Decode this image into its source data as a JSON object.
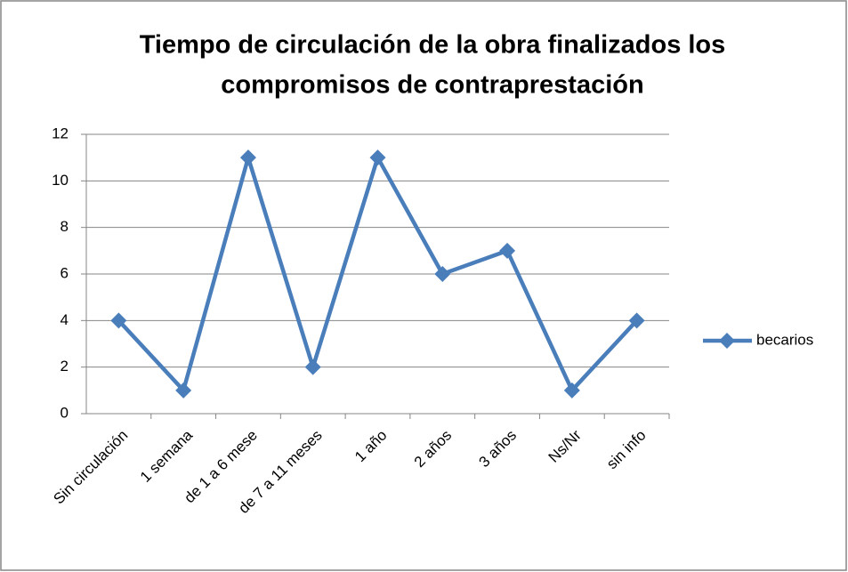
{
  "chart_data": {
    "type": "line",
    "title": [
      "Tiempo de circulación de la obra finalizados los",
      "compromisos de contraprestación"
    ],
    "categories": [
      "Sin circulación",
      "1 semana",
      "de 1 a 6 mese",
      "de 7 a 11 meses",
      "1 año",
      "2 años",
      "3 años",
      "Ns/Nr",
      "sin info"
    ],
    "series": [
      {
        "name": "becarios",
        "color": "#4a7ebb",
        "values": [
          4,
          1,
          11,
          2,
          11,
          6,
          7,
          1,
          4
        ]
      }
    ],
    "ylim": [
      0,
      12
    ],
    "yticks": [
      0,
      2,
      4,
      6,
      8,
      10,
      12
    ],
    "grid": true,
    "legend": "right"
  }
}
